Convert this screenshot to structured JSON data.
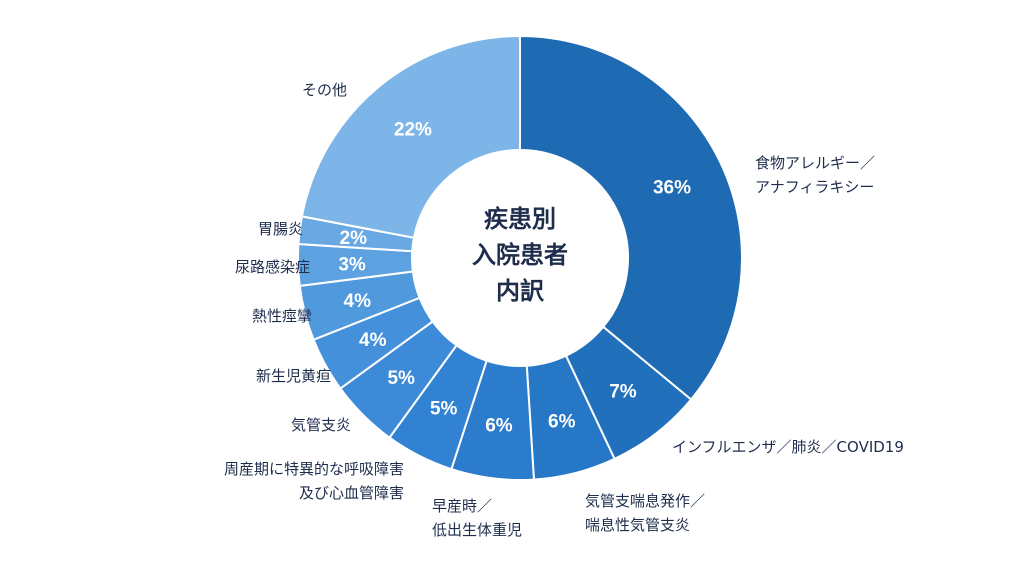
{
  "chart_data": {
    "type": "pie",
    "title": "疾患別入院患者内訳",
    "title_lines": [
      "疾患別",
      "入院患者",
      "内訳"
    ],
    "donut": true,
    "slices": [
      {
        "label_lines": [
          "食物アレルギー／",
          "アナフィラキシー"
        ],
        "value": 36,
        "display": "36%",
        "color": "#1e6ab3"
      },
      {
        "label_lines": [
          "インフルエンザ／肺炎／COVID19"
        ],
        "value": 7,
        "display": "7%",
        "color": "#2170bb"
      },
      {
        "label_lines": [
          "気管支喘息発作／",
          "喘息性気管支炎"
        ],
        "value": 6,
        "display": "6%",
        "color": "#2677c6"
      },
      {
        "label_lines": [
          "早産時／",
          "低出生体重児"
        ],
        "value": 6,
        "display": "6%",
        "color": "#2b7ccd"
      },
      {
        "label_lines": [
          "周産期に特異的な呼吸障害",
          "及び心血管障害"
        ],
        "value": 5,
        "display": "5%",
        "color": "#3182d3"
      },
      {
        "label_lines": [
          "気管支炎"
        ],
        "value": 5,
        "display": "5%",
        "color": "#3d8ad8"
      },
      {
        "label_lines": [
          "新生児黄疸"
        ],
        "value": 4,
        "display": "4%",
        "color": "#4590da"
      },
      {
        "label_lines": [
          "熱性痙攣"
        ],
        "value": 4,
        "display": "4%",
        "color": "#5199dd"
      },
      {
        "label_lines": [
          "尿路感染症"
        ],
        "value": 3,
        "display": "3%",
        "color": "#5ea1e0"
      },
      {
        "label_lines": [
          "胃腸炎"
        ],
        "value": 2,
        "display": "2%",
        "color": "#6aa8e3"
      },
      {
        "label_lines": [
          "その他"
        ],
        "value": 22,
        "display": "22%",
        "color": "#7db5e8"
      }
    ]
  }
}
